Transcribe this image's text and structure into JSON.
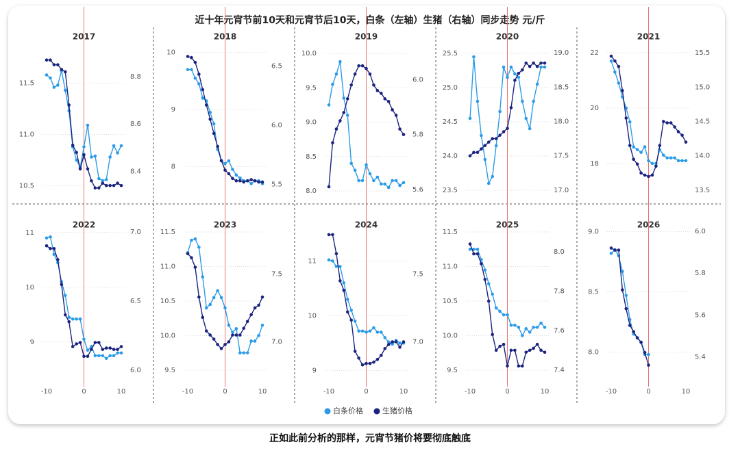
{
  "title": "近十年元宵节前10天和元宵节后10天，白条（左轴）生猪（右轴）同步走势 元/斤",
  "caption": "正如此前分析的那样，元宵节猪价将要彻底触底",
  "chart_data": [
    {
      "type": "line",
      "title": "2017",
      "x": [
        -10,
        -9,
        -8,
        -7,
        -6,
        -5,
        -4,
        -3,
        -2,
        -1,
        0,
        1,
        2,
        3,
        4,
        5,
        6,
        7,
        8,
        9,
        10
      ],
      "xlim": [
        -10,
        10
      ],
      "vline": 0,
      "grid": true,
      "ylim": [
        10.41,
        11.91
      ],
      "yticks": [
        {
          "value": 10.5,
          "label": "10.5"
        },
        {
          "value": 11,
          "label": "11.0"
        },
        11.5
      ],
      "y2lim": [
        8.3,
        8.95
      ],
      "y2ticks": [
        8.4,
        8.6,
        8.8
      ],
      "series": [
        {
          "name": "白条价格",
          "color": "#2b9be8",
          "values": [
            11.58,
            11.55,
            11.46,
            11.48,
            11.62,
            11.43,
            11.23,
            10.88,
            10.75,
            10.68,
            10.88,
            11.09,
            10.78,
            10.79,
            10.57,
            10.55,
            10.56,
            10.78,
            10.89,
            10.82,
            10.89
          ]
        },
        {
          "name": "生猪价格",
          "color": "#1a237e",
          "axis": "y2",
          "values": [
            8.87,
            8.87,
            8.85,
            8.85,
            8.83,
            8.82,
            8.68,
            8.51,
            8.48,
            8.41,
            8.47,
            8.41,
            8.36,
            8.33,
            8.33,
            8.35,
            8.34,
            8.34,
            8.34,
            8.35,
            8.34
          ]
        }
      ]
    },
    {
      "type": "line",
      "title": "2018",
      "x": [
        -10,
        -9,
        -8,
        -7,
        -6,
        -5,
        -4,
        -3,
        -2,
        -1,
        0,
        1,
        2,
        3,
        4,
        5,
        6,
        7,
        8,
        9,
        10
      ],
      "xlim": [
        -10,
        10
      ],
      "vline": 0,
      "grid": true,
      "ylim": [
        7.5,
        10.2
      ],
      "yticks": [
        8,
        9,
        10
      ],
      "y2lim": [
        5.41,
        6.71
      ],
      "y2ticks": [
        5.5,
        {
          "value": 6,
          "label": "6.0"
        },
        6.5
      ],
      "series": [
        {
          "name": "白条价格",
          "color": "#2b9be8",
          "values": [
            9.7,
            9.7,
            9.55,
            9.45,
            9.2,
            9.15,
            8.95,
            8.75,
            8.3,
            8.1,
            8.05,
            8.1,
            7.95,
            7.85,
            7.8,
            7.75,
            7.75,
            7.7,
            7.75,
            7.75,
            7.7
          ]
        },
        {
          "name": "生猪价格",
          "color": "#1a237e",
          "axis": "y2",
          "values": [
            6.58,
            6.57,
            6.53,
            6.43,
            6.3,
            6.17,
            6.05,
            5.93,
            5.82,
            5.7,
            5.62,
            5.59,
            5.55,
            5.53,
            5.53,
            5.52,
            5.53,
            5.54,
            5.53,
            5.52,
            5.52
          ]
        }
      ]
    },
    {
      "type": "line",
      "title": "2019",
      "x": [
        -10,
        -9,
        -8,
        -7,
        -6,
        -5,
        -4,
        -3,
        -2,
        -1,
        0,
        1,
        2,
        3,
        4,
        5,
        6,
        7,
        8,
        9,
        10
      ],
      "xlim": [
        -10,
        10
      ],
      "vline": 0,
      "grid": true,
      "ylim": [
        7.94,
        10.18
      ],
      "yticks": [
        {
          "value": 8,
          "label": "8.0"
        },
        8.5,
        {
          "value": 9,
          "label": "9.0"
        },
        9.5,
        {
          "value": 10,
          "label": "10.0"
        }
      ],
      "y2lim": [
        5.58,
        6.14
      ],
      "y2ticks": [
        5.6,
        5.8,
        {
          "value": 6,
          "label": "6.0"
        }
      ],
      "series": [
        {
          "name": "白条价格",
          "color": "#2b9be8",
          "values": [
            9.25,
            9.55,
            9.7,
            9.88,
            9.35,
            9.1,
            8.4,
            8.3,
            8.15,
            8.15,
            8.38,
            8.25,
            8.15,
            8.2,
            8.1,
            8.1,
            8.05,
            8.15,
            8.15,
            8.08,
            8.12
          ]
        },
        {
          "name": "生猪价格",
          "color": "#1a237e",
          "axis": "y2",
          "values": [
            5.61,
            5.77,
            5.82,
            5.85,
            5.88,
            5.93,
            5.98,
            6.02,
            6.05,
            6.05,
            6.04,
            6.02,
            5.98,
            5.96,
            5.95,
            5.93,
            5.92,
            5.89,
            5.87,
            5.82,
            5.8
          ]
        }
      ]
    },
    {
      "type": "line",
      "title": "2020",
      "x": [
        -10,
        -9,
        -8,
        -7,
        -6,
        -5,
        -4,
        -3,
        -2,
        -1,
        0,
        1,
        2,
        3,
        4,
        5,
        6,
        7,
        8,
        9,
        10
      ],
      "xlim": [
        -10,
        10
      ],
      "vline": 0,
      "grid": true,
      "ylim": [
        23.43,
        25.68
      ],
      "yticks": [
        23.5,
        {
          "value": 24,
          "label": "24.0"
        },
        24.5,
        {
          "value": 25,
          "label": "25.0"
        },
        25.5
      ],
      "y2lim": [
        16.93,
        19.17
      ],
      "y2ticks": [
        {
          "value": 17,
          "label": "17.0"
        },
        17.5,
        {
          "value": 18,
          "label": "18.0"
        },
        18.5,
        {
          "value": 19,
          "label": "19.0"
        }
      ],
      "series": [
        {
          "name": "白条价格",
          "color": "#2b9be8",
          "values": [
            24.55,
            25.45,
            24.8,
            24.3,
            23.95,
            23.6,
            23.7,
            24.15,
            24.65,
            25.3,
            25.15,
            25.3,
            25.2,
            25.15,
            24.8,
            24.55,
            24.4,
            24.8,
            25.05,
            25.3,
            25.3
          ]
        },
        {
          "name": "生猪价格",
          "color": "#1a237e",
          "axis": "y2",
          "values": [
            17.5,
            17.55,
            17.55,
            17.6,
            17.65,
            17.7,
            17.75,
            17.75,
            17.8,
            17.85,
            17.9,
            18.2,
            18.6,
            18.7,
            18.75,
            18.85,
            18.8,
            18.85,
            18.8,
            18.85,
            18.85
          ]
        }
      ]
    },
    {
      "type": "line",
      "title": "2021",
      "x": [
        -10,
        -9,
        -8,
        -7,
        -6,
        -5,
        -4,
        -3,
        -2,
        -1,
        0,
        1,
        2,
        3,
        4,
        5,
        6,
        7,
        8,
        9,
        10
      ],
      "xlim": [
        -10,
        10
      ],
      "vline": 0,
      "grid": true,
      "ylim": [
        16.86,
        22.42
      ],
      "yticks": [
        18,
        20,
        22
      ],
      "y2lim": [
        13.43,
        15.67
      ],
      "y2ticks": [
        13.5,
        {
          "value": 14,
          "label": "14.0"
        },
        14.5,
        {
          "value": 15,
          "label": "15.0"
        },
        15.5
      ],
      "series": [
        {
          "name": "白条价格",
          "color": "#2b9be8",
          "values": [
            21.7,
            21.3,
            20.9,
            20.4,
            20.0,
            19.5,
            18.6,
            18.5,
            18.4,
            18.6,
            18.1,
            18.0,
            18.0,
            18.5,
            18.3,
            18.2,
            18.2,
            18.2,
            18.1,
            18.1,
            18.1
          ]
        },
        {
          "name": "生猪价格",
          "color": "#1a237e",
          "axis": "y2",
          "values": [
            15.45,
            15.38,
            15.3,
            14.95,
            14.55,
            14.15,
            13.95,
            13.88,
            13.75,
            13.72,
            13.7,
            13.72,
            13.85,
            14.15,
            14.5,
            14.48,
            14.48,
            14.42,
            14.35,
            14.3,
            14.2
          ]
        }
      ]
    },
    {
      "type": "line",
      "title": "2022",
      "x": [
        -10,
        -9,
        -8,
        -7,
        -6,
        -5,
        -4,
        -3,
        -2,
        -1,
        0,
        1,
        2,
        3,
        4,
        5,
        6,
        7,
        8,
        9,
        10
      ],
      "xlim": [
        -10,
        10
      ],
      "xticks": [
        -10,
        0,
        10
      ],
      "vline": 0,
      "grid": true,
      "ylim": [
        8.31,
        11.06
      ],
      "yticks": [
        9,
        10,
        11
      ],
      "y2lim": [
        5.93,
        7.02
      ],
      "y2ticks": [
        {
          "value": 6,
          "label": "6.0"
        },
        6.5,
        {
          "value": 7,
          "label": "7.0"
        }
      ],
      "series": [
        {
          "name": "白条价格",
          "color": "#2b9be8",
          "values": [
            10.9,
            10.92,
            10.6,
            10.45,
            10.1,
            9.85,
            9.45,
            9.42,
            9.42,
            9.42,
            9.05,
            8.85,
            8.92,
            8.75,
            8.75,
            8.75,
            8.7,
            8.75,
            8.75,
            8.8,
            8.8
          ]
        },
        {
          "name": "生猪价格",
          "color": "#1a237e",
          "axis": "y2",
          "values": [
            6.9,
            6.88,
            6.88,
            6.8,
            6.62,
            6.4,
            6.35,
            6.17,
            6.19,
            6.2,
            6.1,
            6.1,
            6.15,
            6.2,
            6.2,
            6.15,
            6.16,
            6.16,
            6.15,
            6.15,
            6.17
          ]
        }
      ]
    },
    {
      "type": "line",
      "title": "2023",
      "x": [
        -10,
        -9,
        -8,
        -7,
        -6,
        -5,
        -4,
        -3,
        -2,
        -1,
        0,
        1,
        2,
        3,
        4,
        5,
        6,
        7,
        8,
        9,
        10
      ],
      "xlim": [
        -10,
        10
      ],
      "xticks": [
        -10,
        0,
        10
      ],
      "vline": 0,
      "grid": true,
      "ylim": [
        9.36,
        11.54
      ],
      "yticks": [
        9.5,
        {
          "value": 10,
          "label": "10.0"
        },
        10.5,
        {
          "value": 11,
          "label": "11.0"
        },
        11.5
      ],
      "y2lim": [
        6.72,
        7.83
      ],
      "y2ticks": [
        {
          "value": 7,
          "label": "7.0"
        },
        7.5
      ],
      "series": [
        {
          "name": "白条价格",
          "color": "#2b9be8",
          "values": [
            11.2,
            11.38,
            11.4,
            11.28,
            10.85,
            10.4,
            10.45,
            10.55,
            10.65,
            10.55,
            10.4,
            10.15,
            10.05,
            10.1,
            9.75,
            9.75,
            9.75,
            9.92,
            9.92,
            10.0,
            10.15
          ]
        },
        {
          "name": "生猪价格",
          "color": "#1a237e",
          "axis": "y2",
          "values": [
            7.65,
            7.62,
            7.55,
            7.33,
            7.18,
            7.08,
            7.05,
            7.02,
            6.98,
            6.95,
            6.98,
            7.0,
            7.05,
            7.05,
            7.05,
            7.1,
            7.15,
            7.2,
            7.25,
            7.27,
            7.33
          ]
        }
      ]
    },
    {
      "type": "line",
      "title": "2024",
      "x": [
        -10,
        -9,
        -8,
        -7,
        -6,
        -5,
        -4,
        -3,
        -2,
        -1,
        0,
        1,
        2,
        3,
        4,
        5,
        6,
        7,
        8,
        9,
        10
      ],
      "xlim": [
        -10,
        10
      ],
      "xticks": [
        -10,
        0,
        10
      ],
      "vline": 0,
      "grid": true,
      "ylim": [
        8.83,
        11.58
      ],
      "yticks": [
        9,
        10,
        11
      ],
      "y2lim": [
        6.72,
        7.83
      ],
      "y2ticks": [
        {
          "value": 7,
          "label": "7.0"
        },
        7.5
      ],
      "series": [
        {
          "name": "白条价格",
          "color": "#2b9be8",
          "values": [
            11.02,
            11.0,
            10.9,
            10.9,
            10.6,
            10.3,
            10.1,
            9.9,
            9.72,
            9.72,
            9.7,
            9.72,
            9.78,
            9.7,
            9.7,
            9.6,
            9.52,
            9.48,
            9.55,
            9.5,
            9.5
          ]
        },
        {
          "name": "生猪价格",
          "color": "#1a237e",
          "axis": "y2",
          "values": [
            7.79,
            7.79,
            7.65,
            7.45,
            7.38,
            7.22,
            7.16,
            6.93,
            6.88,
            6.83,
            6.84,
            6.84,
            6.85,
            6.87,
            6.9,
            6.95,
            6.98,
            7.0,
            7.0,
            6.96,
            7.0
          ]
        }
      ]
    },
    {
      "type": "line",
      "title": "2025",
      "x": [
        -10,
        -9,
        -8,
        -7,
        -6,
        -5,
        -4,
        -3,
        -2,
        -1,
        0,
        1,
        2,
        3,
        4,
        5,
        6,
        7,
        8,
        9,
        10
      ],
      "xlim": [
        -10,
        10
      ],
      "xticks": [
        -10,
        0,
        10
      ],
      "vline": 0,
      "grid": true,
      "ylim": [
        9.36,
        11.54
      ],
      "yticks": [
        9.5,
        {
          "value": 10,
          "label": "10.0"
        },
        10.5,
        {
          "value": 11,
          "label": "11.0"
        },
        11.5
      ],
      "y2lim": [
        7.35,
        8.115
      ],
      "y2ticks": [
        7.4,
        7.6,
        7.8,
        {
          "value": 8,
          "label": "8.0"
        }
      ],
      "series": [
        {
          "name": "白条价格",
          "color": "#2b9be8",
          "values": [
            11.25,
            11.25,
            11.25,
            11.1,
            10.95,
            10.75,
            10.6,
            10.4,
            10.35,
            10.3,
            10.3,
            10.15,
            10.15,
            10.12,
            10.0,
            10.1,
            10.05,
            10.12,
            10.12,
            10.18,
            10.12
          ]
        },
        {
          "name": "生猪价格",
          "color": "#1a237e",
          "axis": "y2",
          "values": [
            8.04,
            7.99,
            7.99,
            7.94,
            7.86,
            7.75,
            7.58,
            7.5,
            7.52,
            7.53,
            7.42,
            7.5,
            7.5,
            7.42,
            7.42,
            7.49,
            7.5,
            7.51,
            7.53,
            7.5,
            7.49
          ]
        }
      ]
    },
    {
      "type": "line",
      "title": "2026",
      "x": [
        -10,
        -9,
        -8,
        -7,
        -6,
        -5,
        -4,
        -3,
        -2,
        -1,
        0
      ],
      "xlim": [
        -10,
        10
      ],
      "xticks": [
        -10,
        0,
        10
      ],
      "vline": 0,
      "grid": true,
      "ylim": [
        7.77,
        9.02
      ],
      "yticks": [
        {
          "value": 8,
          "label": "8.0"
        },
        8.5,
        {
          "value": 9,
          "label": "9.0"
        }
      ],
      "y2lim": [
        5.29,
        6.01
      ],
      "y2ticks": [
        5.4,
        5.6,
        5.8,
        {
          "value": 6,
          "label": "6.0"
        }
      ],
      "series": [
        {
          "name": "白条价格",
          "color": "#2b9be8",
          "values": [
            8.82,
            8.85,
            8.8,
            8.67,
            8.47,
            8.27,
            8.15,
            8.12,
            8.08,
            7.98,
            7.98
          ]
        },
        {
          "name": "生猪价格",
          "color": "#1a237e",
          "axis": "y2",
          "values": [
            5.92,
            5.91,
            5.91,
            5.72,
            5.63,
            5.55,
            5.52,
            5.49,
            5.47,
            5.42,
            5.36
          ]
        }
      ]
    }
  ]
}
